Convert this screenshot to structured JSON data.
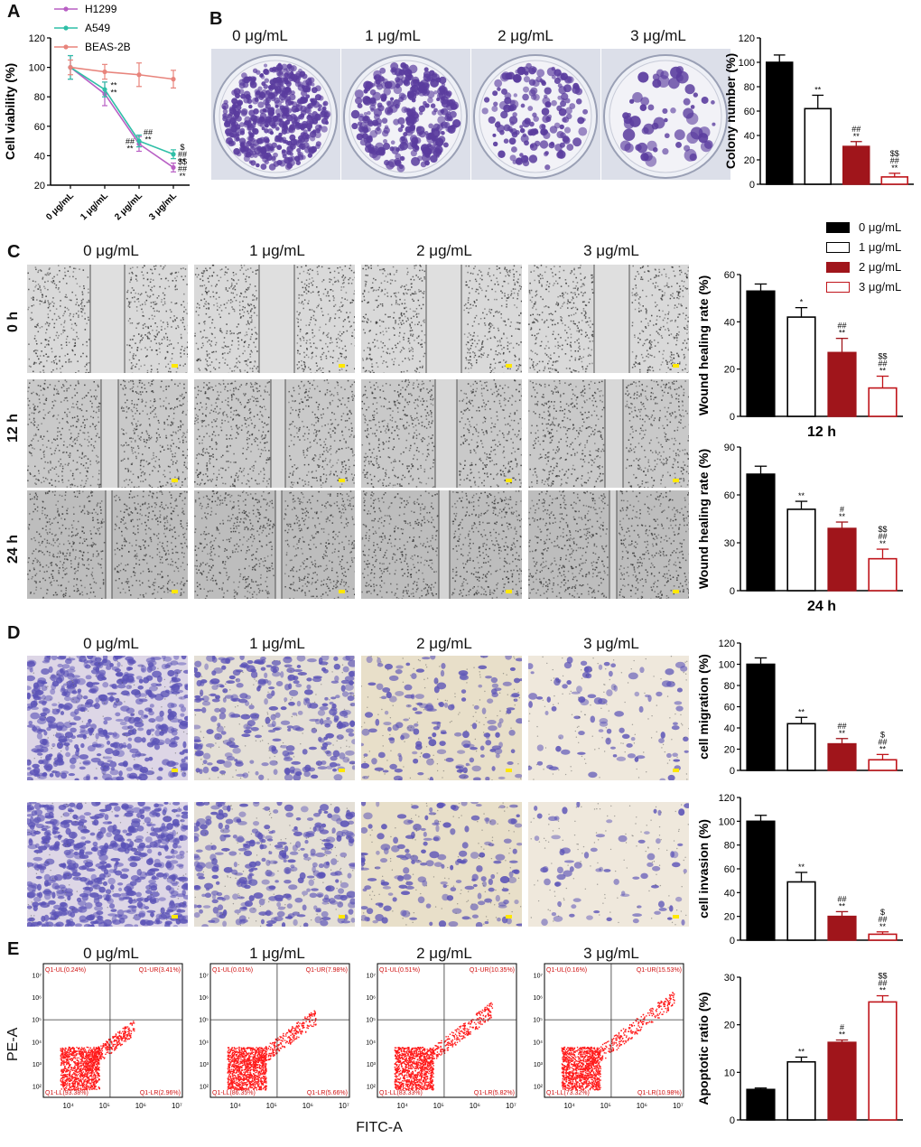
{
  "panels": {
    "A": "A",
    "B": "B",
    "C": "C",
    "D": "D",
    "E": "E"
  },
  "conc_labels": [
    "0 μg/mL",
    "1 μg/mL",
    "2 μg/mL",
    "3 μg/mL"
  ],
  "time_labels": [
    "0 h",
    "12 h",
    "24 h"
  ],
  "colors": {
    "black": "#000000",
    "white": "#ffffff",
    "dark_red": "#a0151b",
    "red": "#c0151b",
    "pink": "#e8847c",
    "purple": "#b85fc4",
    "teal": "#2fbfa7",
    "colony_purple": "#5a3c9e",
    "stain_purple": "#5b53b7",
    "flow_red": "#ff1a1a"
  },
  "legend": [
    {
      "label": "0 μg/mL",
      "fill": "#000000",
      "stroke": "#000000"
    },
    {
      "label": "1 μg/mL",
      "fill": "#ffffff",
      "stroke": "#000000"
    },
    {
      "label": "2 μg/mL",
      "fill": "#a0151b",
      "stroke": "#a0151b"
    },
    {
      "label": "3 μg/mL",
      "fill": "#ffffff",
      "stroke": "#c0151b"
    }
  ],
  "flow": {
    "xlabel": "FITC-A",
    "ylabel": "PE-A",
    "quadrants": [
      {
        "ul": "Q1-UL(0.24%)",
        "ur": "Q1-UR(3.41%)",
        "ll": "Q1-LL(93.38%)",
        "lr": "Q1-LR(2.96%)"
      },
      {
        "ul": "Q1-UL(0.01%)",
        "ur": "Q1-UR(7.98%)",
        "ll": "Q1-LL(86.35%)",
        "lr": "Q1-LR(5.66%)"
      },
      {
        "ul": "Q1-UL(0.51%)",
        "ur": "Q1-UR(10.35%)",
        "ll": "Q1-LL(83.33%)",
        "lr": "Q1-LR(5.82%)"
      },
      {
        "ul": "Q1-UL(0.16%)",
        "ur": "Q1-UR(15.53%)",
        "ll": "Q1-LL(73.32%)",
        "lr": "Q1-LR(10.98%)"
      }
    ],
    "yticks": [
      "10²",
      "10³",
      "10⁴",
      "10⁵",
      "10⁶",
      "10⁷"
    ],
    "xticks": [
      "10⁴",
      "10⁵",
      "10⁶",
      "10⁷"
    ]
  },
  "chart_data": [
    {
      "id": "A",
      "type": "line",
      "ylabel": "Cell viability (%)",
      "categories": [
        "0 μg/mL",
        "1 μg/mL",
        "2 μg/mL",
        "3 μg/mL"
      ],
      "ylim": [
        20,
        120
      ],
      "yticks": [
        20,
        40,
        60,
        80,
        100,
        120
      ],
      "series": [
        {
          "name": "H1299",
          "color": "#b85fc4",
          "values": [
            100,
            82,
            48,
            32
          ],
          "err": [
            8,
            8,
            5,
            3
          ]
        },
        {
          "name": "A549",
          "color": "#2fbfa7",
          "values": [
            100,
            85,
            50,
            41
          ],
          "err": [
            8,
            5,
            4,
            3
          ]
        },
        {
          "name": "BEAS-2B",
          "color": "#e8847c",
          "values": [
            100,
            97,
            95,
            92
          ],
          "err": [
            5,
            5,
            8,
            6
          ]
        }
      ],
      "annotations": [
        {
          "cat": 1,
          "y": 86,
          "lines": [
            "**",
            "**"
          ]
        },
        {
          "cat": 2,
          "y": 54,
          "lines": [
            "##",
            "**"
          ]
        },
        {
          "cat": 2,
          "y": 48,
          "lines": [
            "##",
            "**"
          ],
          "side": "left"
        },
        {
          "cat": 3,
          "y": 44,
          "lines": [
            "$",
            "##",
            "**"
          ]
        },
        {
          "cat": 3,
          "y": 34,
          "lines": [
            "$$",
            "##",
            "**"
          ]
        }
      ]
    },
    {
      "id": "B",
      "type": "bar",
      "ylabel": "Colony number (%)",
      "categories": [
        "0 μg/mL",
        "1 μg/mL",
        "2 μg/mL",
        "3 μg/mL"
      ],
      "values": [
        100,
        62,
        31,
        6
      ],
      "err": [
        6,
        11,
        4,
        3
      ],
      "ylim": [
        0,
        120
      ],
      "yticks": [
        0,
        20,
        40,
        60,
        80,
        100,
        120
      ],
      "sig": [
        [],
        [
          "**"
        ],
        [
          "##",
          "**"
        ],
        [
          "$$",
          "##",
          "**"
        ]
      ]
    },
    {
      "id": "C12",
      "type": "bar",
      "ylabel": "Wound healing rate (%)",
      "xlabel": "12 h",
      "categories": [
        "0 μg/mL",
        "1 μg/mL",
        "2 μg/mL",
        "3 μg/mL"
      ],
      "values": [
        53,
        42,
        27,
        12
      ],
      "err": [
        3,
        4,
        6,
        5
      ],
      "ylim": [
        0,
        60
      ],
      "yticks": [
        0,
        20,
        40,
        60
      ],
      "sig": [
        [],
        [
          "*"
        ],
        [
          "##",
          "**"
        ],
        [
          "$$",
          "##",
          "**"
        ]
      ]
    },
    {
      "id": "C24",
      "type": "bar",
      "ylabel": "Wound healing rate (%)",
      "xlabel": "24 h",
      "categories": [
        "0 μg/mL",
        "1 μg/mL",
        "2 μg/mL",
        "3 μg/mL"
      ],
      "values": [
        73,
        51,
        39,
        20
      ],
      "err": [
        5,
        5,
        4,
        6
      ],
      "ylim": [
        0,
        90
      ],
      "yticks": [
        0,
        30,
        60,
        90
      ],
      "sig": [
        [],
        [
          "**"
        ],
        [
          "#",
          "**"
        ],
        [
          "$$",
          "##",
          "**"
        ]
      ]
    },
    {
      "id": "Dmig",
      "type": "bar",
      "ylabel": "cell migration (%)",
      "categories": [
        "0 μg/mL",
        "1 μg/mL",
        "2 μg/mL",
        "3 μg/mL"
      ],
      "values": [
        100,
        44,
        25,
        10
      ],
      "err": [
        6,
        6,
        5,
        5
      ],
      "ylim": [
        0,
        120
      ],
      "yticks": [
        0,
        20,
        40,
        60,
        80,
        100,
        120
      ],
      "sig": [
        [],
        [
          "**"
        ],
        [
          "##",
          "**"
        ],
        [
          "$",
          "##",
          "**"
        ]
      ]
    },
    {
      "id": "Dinv",
      "type": "bar",
      "ylabel": "cell invasion (%)",
      "categories": [
        "0 μg/mL",
        "1 μg/mL",
        "2 μg/mL",
        "3 μg/mL"
      ],
      "values": [
        100,
        49,
        20,
        5
      ],
      "err": [
        5,
        8,
        4,
        2
      ],
      "ylim": [
        0,
        120
      ],
      "yticks": [
        0,
        20,
        40,
        60,
        80,
        100,
        120
      ],
      "sig": [
        [],
        [
          "**"
        ],
        [
          "##",
          "**"
        ],
        [
          "$",
          "##",
          "**"
        ]
      ]
    },
    {
      "id": "E",
      "type": "bar",
      "ylabel": "Apoptotic ratio (%)",
      "categories": [
        "0 μg/mL",
        "1 μg/mL",
        "2 μg/mL",
        "3 μg/mL"
      ],
      "values": [
        6.4,
        12.2,
        16.3,
        24.8
      ],
      "err": [
        0.3,
        1.0,
        0.5,
        1.3
      ],
      "ylim": [
        0,
        30
      ],
      "yticks": [
        0,
        10,
        20,
        30
      ],
      "sig": [
        [],
        [
          "**"
        ],
        [
          "#",
          "**"
        ],
        [
          "$$",
          "##",
          "**"
        ]
      ]
    }
  ]
}
